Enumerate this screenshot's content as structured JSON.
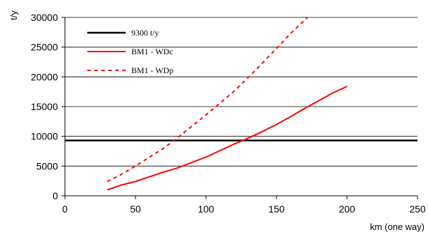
{
  "chart_data": {
    "type": "line",
    "xlabel": "km (one way)",
    "ylabel": "t/y",
    "xlim": [
      0,
      250
    ],
    "ylim": [
      0,
      30000
    ],
    "x_ticks": [
      0,
      50,
      100,
      150,
      200,
      250
    ],
    "y_ticks": [
      0,
      5000,
      10000,
      15000,
      20000,
      25000,
      30000
    ],
    "grid": "horizontal",
    "legend_position": "top-left",
    "series": [
      {
        "name": "9300 t/y",
        "color": "#000000",
        "style": "solid",
        "x": [
          0,
          250
        ],
        "y": [
          9300,
          9300
        ]
      },
      {
        "name": "BM1 - WDc",
        "color": "#ff0000",
        "style": "solid",
        "x": [
          30,
          40,
          50,
          60,
          70,
          80,
          90,
          100,
          110,
          120,
          130,
          140,
          150,
          160,
          170,
          180,
          190,
          200
        ],
        "y": [
          1000,
          1800,
          2400,
          3200,
          4000,
          4700,
          5600,
          6500,
          7600,
          8700,
          9700,
          10800,
          12000,
          13300,
          14700,
          16000,
          17300,
          18400
        ]
      },
      {
        "name": "BM1 - WDp",
        "color": "#ff0000",
        "style": "dashed",
        "x": [
          30,
          40,
          50,
          60,
          70,
          80,
          90,
          100,
          110,
          120,
          130,
          140,
          150,
          160,
          172
        ],
        "y": [
          2400,
          3600,
          5000,
          6500,
          8000,
          9800,
          11700,
          13600,
          15600,
          17600,
          19900,
          22300,
          24800,
          27300,
          30000
        ]
      }
    ]
  }
}
